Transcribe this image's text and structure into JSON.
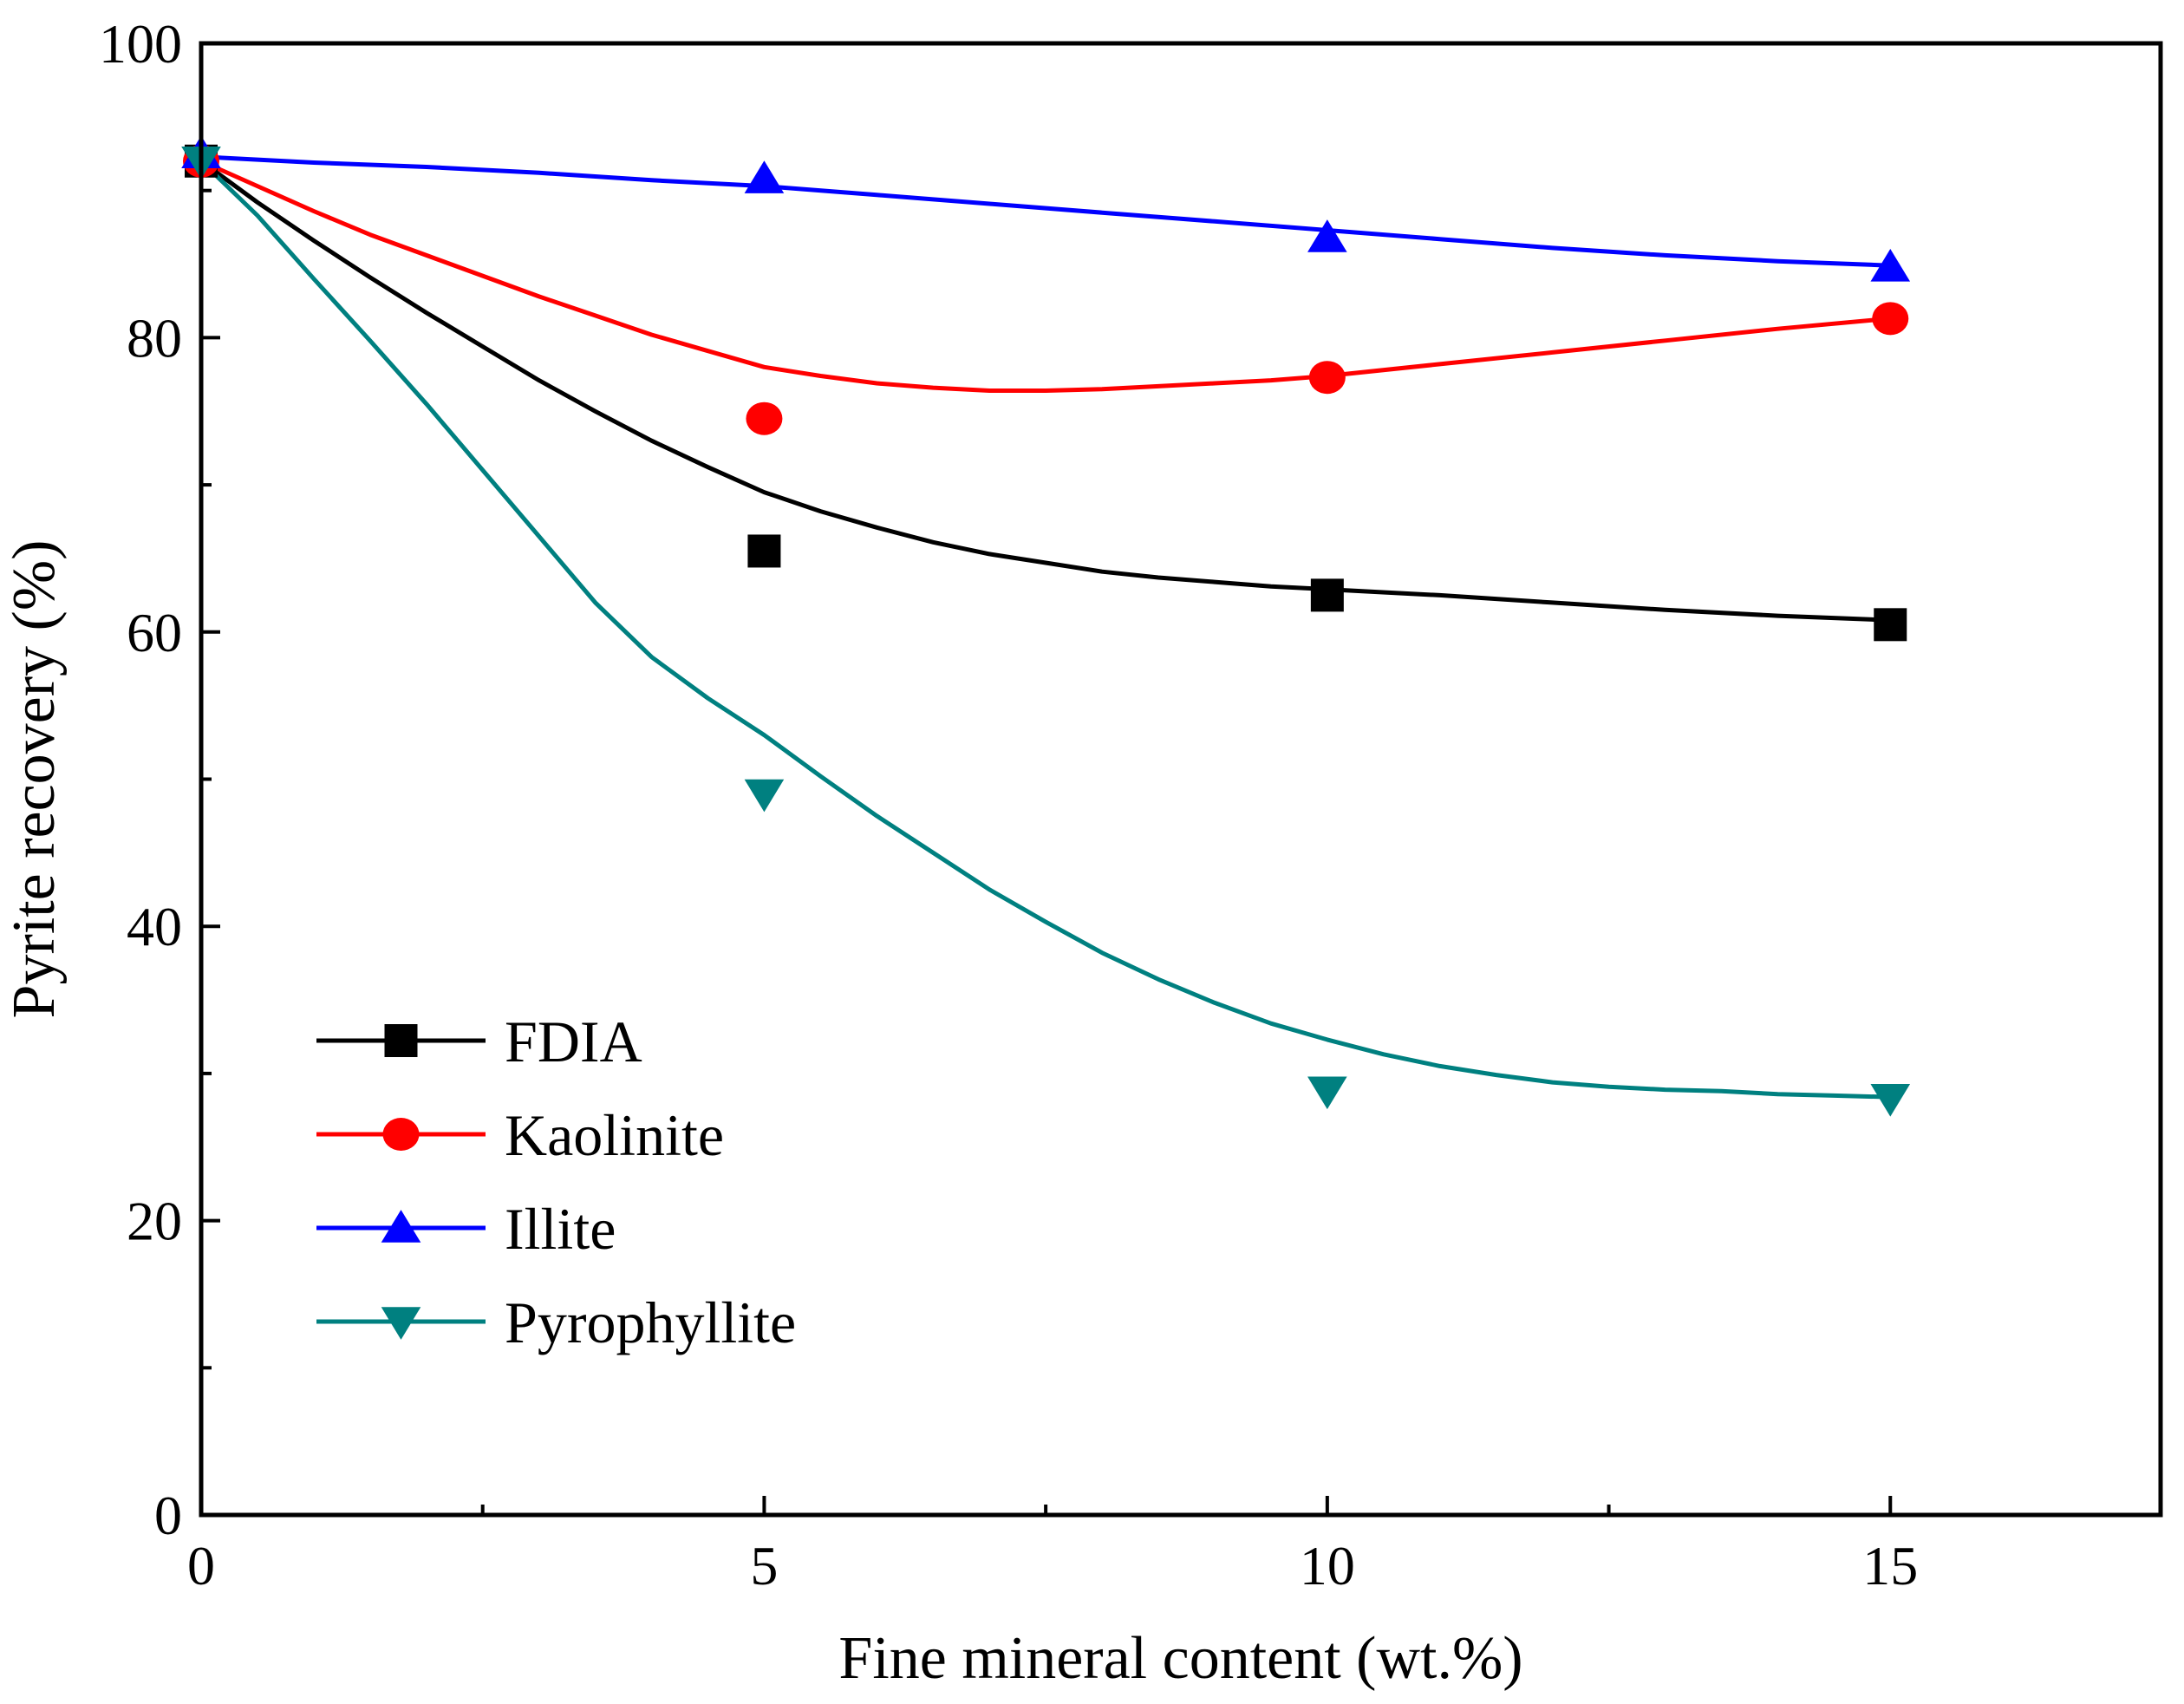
{
  "chart_data": {
    "type": "line",
    "title": "",
    "xlabel": "Fine mineral content (wt.%)",
    "ylabel": "Pyrite recovery (%)",
    "xlim": [
      0,
      17.4
    ],
    "ylim": [
      0,
      100
    ],
    "x_major_ticks": [
      0,
      5,
      10,
      15
    ],
    "x_minor_ticks": [
      2.5,
      7.5,
      12.5
    ],
    "y_major_ticks": [
      0,
      20,
      40,
      60,
      80,
      100
    ],
    "y_minor_ticks": [
      10,
      30,
      50,
      70,
      90
    ],
    "x_tick_labels": [
      "0",
      "5",
      "10",
      "15"
    ],
    "y_tick_labels": [
      "0",
      "20",
      "40",
      "60",
      "80",
      "100"
    ],
    "grid": false,
    "legend_position": "bottom-left",
    "series": [
      {
        "name": "FDIA",
        "color": "#000000",
        "marker": "square",
        "points": [
          {
            "x": 0,
            "y": 92.0
          },
          {
            "x": 5,
            "y": 65.5
          },
          {
            "x": 10,
            "y": 62.5
          },
          {
            "x": 15,
            "y": 60.5
          }
        ],
        "fit": [
          {
            "x": 0,
            "y": 92.0
          },
          {
            "x": 0.5,
            "y": 89.2
          },
          {
            "x": 1,
            "y": 86.6
          },
          {
            "x": 1.5,
            "y": 84.1
          },
          {
            "x": 2,
            "y": 81.7
          },
          {
            "x": 2.5,
            "y": 79.4
          },
          {
            "x": 3,
            "y": 77.1
          },
          {
            "x": 3.5,
            "y": 75.0
          },
          {
            "x": 4,
            "y": 73.0
          },
          {
            "x": 4.5,
            "y": 71.2
          },
          {
            "x": 5,
            "y": 69.5
          },
          {
            "x": 5.5,
            "y": 68.2
          },
          {
            "x": 6,
            "y": 67.1
          },
          {
            "x": 6.5,
            "y": 66.1
          },
          {
            "x": 7,
            "y": 65.3
          },
          {
            "x": 7.5,
            "y": 64.7
          },
          {
            "x": 8,
            "y": 64.1
          },
          {
            "x": 8.5,
            "y": 63.7
          },
          {
            "x": 9,
            "y": 63.4
          },
          {
            "x": 9.5,
            "y": 63.1
          },
          {
            "x": 10,
            "y": 62.9
          },
          {
            "x": 11,
            "y": 62.5
          },
          {
            "x": 12,
            "y": 62.0
          },
          {
            "x": 13,
            "y": 61.5
          },
          {
            "x": 14,
            "y": 61.1
          },
          {
            "x": 15,
            "y": 60.8
          }
        ]
      },
      {
        "name": "Kaolinite",
        "color": "#ff0000",
        "marker": "circle",
        "points": [
          {
            "x": 0,
            "y": 92.0
          },
          {
            "x": 5,
            "y": 74.5
          },
          {
            "x": 10,
            "y": 77.3
          },
          {
            "x": 15,
            "y": 81.3
          }
        ],
        "fit": [
          {
            "x": 0,
            "y": 92.0
          },
          {
            "x": 0.5,
            "y": 90.3
          },
          {
            "x": 1,
            "y": 88.6
          },
          {
            "x": 1.5,
            "y": 87.0
          },
          {
            "x": 2,
            "y": 85.6
          },
          {
            "x": 2.5,
            "y": 84.2
          },
          {
            "x": 3,
            "y": 82.8
          },
          {
            "x": 3.5,
            "y": 81.5
          },
          {
            "x": 4,
            "y": 80.2
          },
          {
            "x": 4.5,
            "y": 79.1
          },
          {
            "x": 5,
            "y": 78.0
          },
          {
            "x": 5.5,
            "y": 77.4
          },
          {
            "x": 6,
            "y": 76.9
          },
          {
            "x": 6.5,
            "y": 76.6
          },
          {
            "x": 7,
            "y": 76.4
          },
          {
            "x": 7.5,
            "y": 76.4
          },
          {
            "x": 8,
            "y": 76.5
          },
          {
            "x": 8.5,
            "y": 76.7
          },
          {
            "x": 9,
            "y": 76.9
          },
          {
            "x": 9.5,
            "y": 77.1
          },
          {
            "x": 10,
            "y": 77.4
          },
          {
            "x": 11,
            "y": 78.2
          },
          {
            "x": 12,
            "y": 79.0
          },
          {
            "x": 13,
            "y": 79.8
          },
          {
            "x": 14,
            "y": 80.6
          },
          {
            "x": 15,
            "y": 81.3
          }
        ]
      },
      {
        "name": "Illite",
        "color": "#0000ff",
        "marker": "triangle-up",
        "points": [
          {
            "x": 0,
            "y": 92.5
          },
          {
            "x": 5,
            "y": 90.8
          },
          {
            "x": 10,
            "y": 86.8
          },
          {
            "x": 15,
            "y": 84.8
          }
        ],
        "fit": [
          {
            "x": 0,
            "y": 92.3
          },
          {
            "x": 1,
            "y": 91.9
          },
          {
            "x": 2,
            "y": 91.6
          },
          {
            "x": 3,
            "y": 91.2
          },
          {
            "x": 4,
            "y": 90.7
          },
          {
            "x": 5,
            "y": 90.3
          },
          {
            "x": 6,
            "y": 89.7
          },
          {
            "x": 7,
            "y": 89.1
          },
          {
            "x": 8,
            "y": 88.5
          },
          {
            "x": 9,
            "y": 87.9
          },
          {
            "x": 10,
            "y": 87.3
          },
          {
            "x": 11,
            "y": 86.7
          },
          {
            "x": 12,
            "y": 86.1
          },
          {
            "x": 13,
            "y": 85.6
          },
          {
            "x": 14,
            "y": 85.2
          },
          {
            "x": 15,
            "y": 84.9
          }
        ]
      },
      {
        "name": "Pyrophyllite",
        "color": "#008080",
        "marker": "triangle-down",
        "points": [
          {
            "x": 0,
            "y": 92.0
          },
          {
            "x": 5,
            "y": 49.0
          },
          {
            "x": 10,
            "y": 28.8
          },
          {
            "x": 15,
            "y": 28.3
          }
        ],
        "fit": [
          {
            "x": 0,
            "y": 92.0
          },
          {
            "x": 0.5,
            "y": 88.3
          },
          {
            "x": 1,
            "y": 84.0
          },
          {
            "x": 1.5,
            "y": 79.8
          },
          {
            "x": 2,
            "y": 75.5
          },
          {
            "x": 2.5,
            "y": 71.0
          },
          {
            "x": 3,
            "y": 66.5
          },
          {
            "x": 3.5,
            "y": 62.0
          },
          {
            "x": 4,
            "y": 58.3
          },
          {
            "x": 4.5,
            "y": 55.5
          },
          {
            "x": 5,
            "y": 53.0
          },
          {
            "x": 5.5,
            "y": 50.2
          },
          {
            "x": 6,
            "y": 47.5
          },
          {
            "x": 6.5,
            "y": 45.0
          },
          {
            "x": 7,
            "y": 42.5
          },
          {
            "x": 7.5,
            "y": 40.3
          },
          {
            "x": 8,
            "y": 38.2
          },
          {
            "x": 8.5,
            "y": 36.4
          },
          {
            "x": 9,
            "y": 34.8
          },
          {
            "x": 9.5,
            "y": 33.4
          },
          {
            "x": 10,
            "y": 32.3
          },
          {
            "x": 10.5,
            "y": 31.3
          },
          {
            "x": 11,
            "y": 30.5
          },
          {
            "x": 11.5,
            "y": 29.9
          },
          {
            "x": 12,
            "y": 29.4
          },
          {
            "x": 12.5,
            "y": 29.1
          },
          {
            "x": 13,
            "y": 28.9
          },
          {
            "x": 13.5,
            "y": 28.8
          },
          {
            "x": 14,
            "y": 28.6
          },
          {
            "x": 14.5,
            "y": 28.5
          },
          {
            "x": 15,
            "y": 28.4
          }
        ]
      }
    ]
  }
}
